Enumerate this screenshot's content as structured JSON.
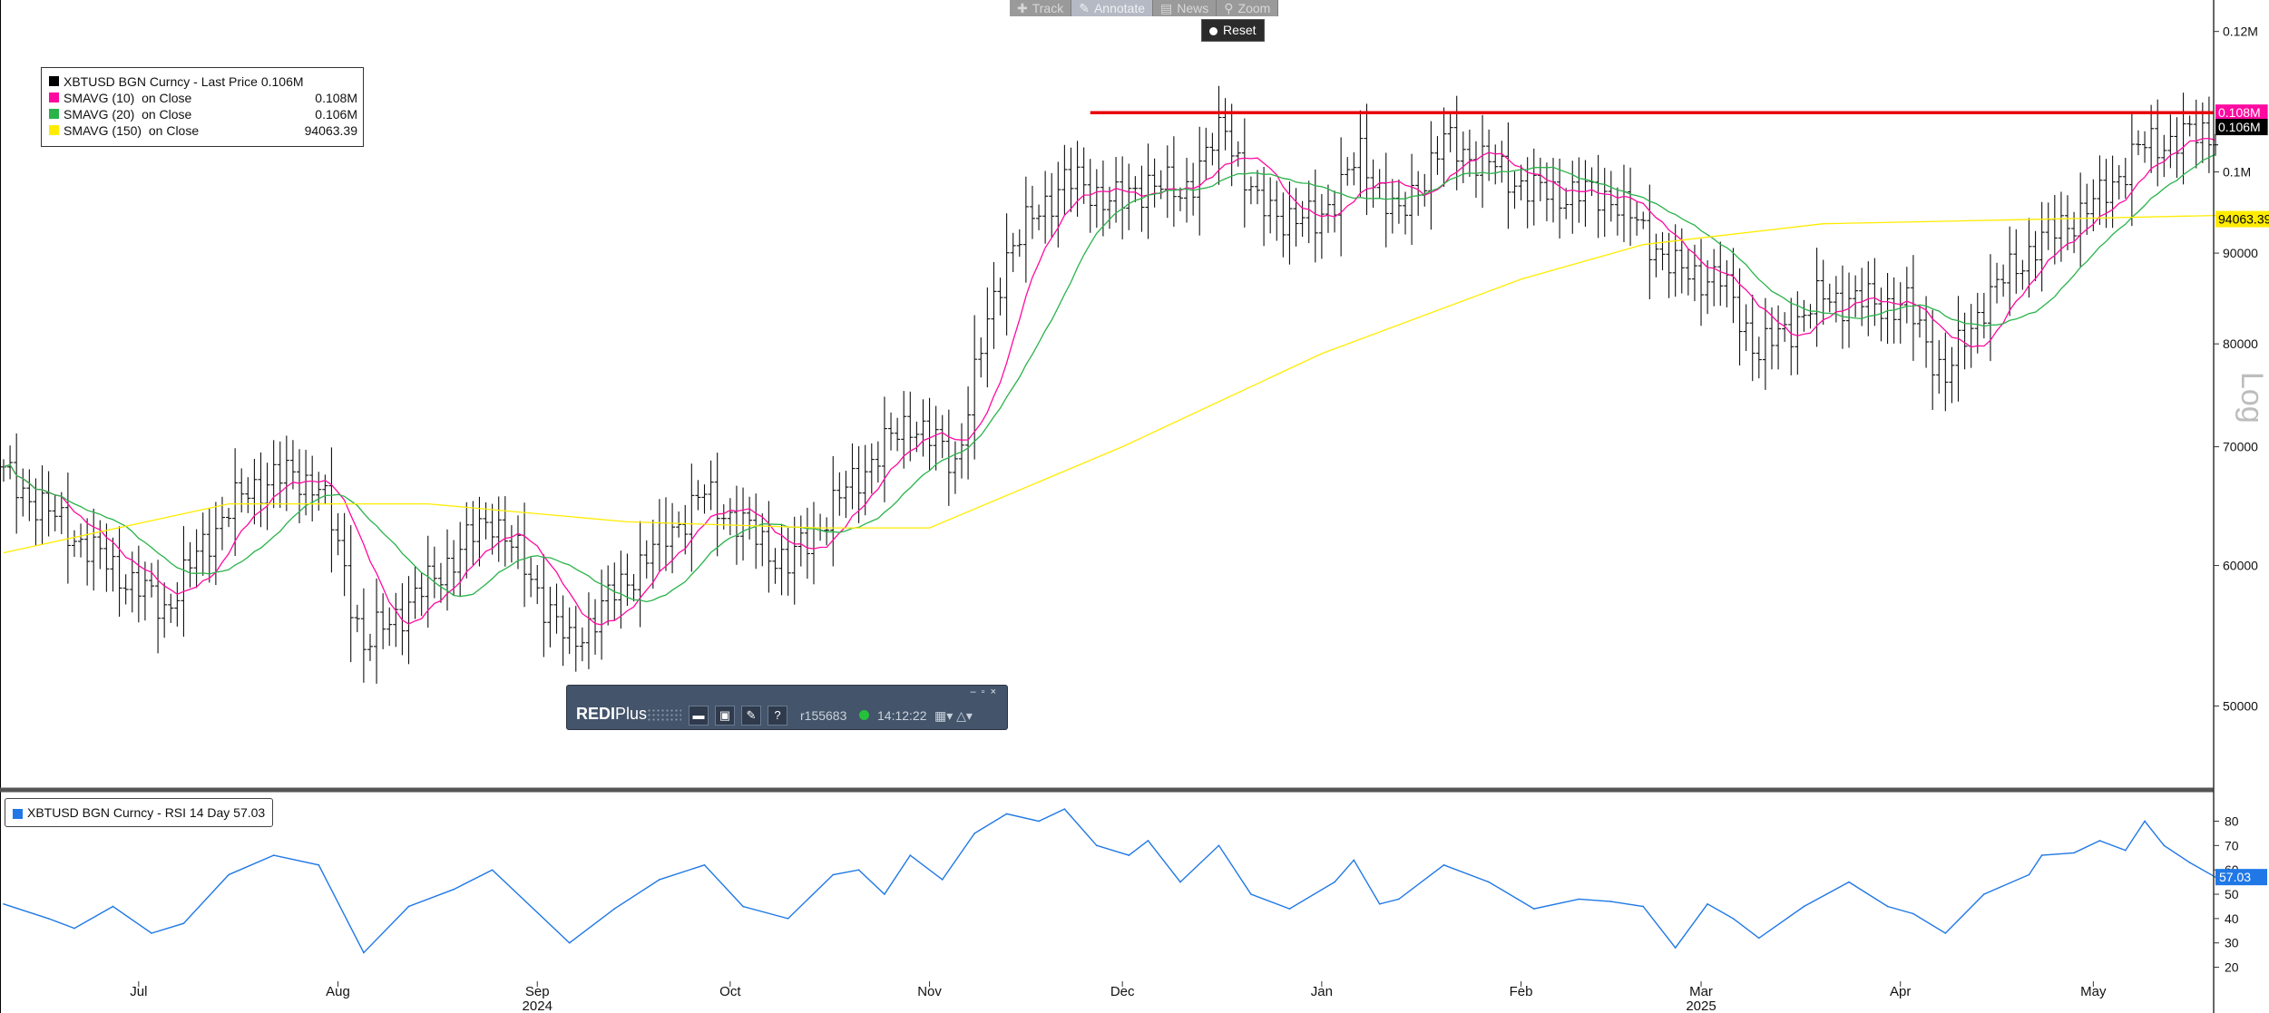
{
  "toolbar": {
    "buttons": [
      {
        "label": "Track",
        "icon": "crosshair-icon",
        "active": false
      },
      {
        "label": "Annotate",
        "icon": "pencil-icon",
        "active": true
      },
      {
        "label": "News",
        "icon": "news-icon",
        "active": false
      },
      {
        "label": "Zoom",
        "icon": "magnifier-icon",
        "active": false
      }
    ],
    "reset_label": "Reset"
  },
  "legend": {
    "rows": [
      {
        "name": "XBTUSD BGN Curncy - Last Price 0.106M",
        "value": "",
        "color": "#000000"
      },
      {
        "name": "SMAVG (10)  on Close",
        "value": "0.108M",
        "color": "#ff0aa0"
      },
      {
        "name": "SMAVG (20)  on Close",
        "value": "0.106M",
        "color": "#29b34a"
      },
      {
        "name": "SMAVG (150)  on Close",
        "value": "94063.39",
        "color": "#ffec00"
      }
    ]
  },
  "rsi_legend": {
    "label": "XBTUSD BGN Curncy - RSI 14 Day 57.03",
    "color": "#1f78e6"
  },
  "redi": {
    "brand": "REDI",
    "brand_suffix": "Plus",
    "user": "r155683",
    "time": "14:12:22",
    "status_color": "#25c13b"
  },
  "scale_label": "Log",
  "chart_data": [
    {
      "type": "ohlc",
      "title": "XBTUSD BGN Curncy - Last Price 0.106M",
      "y_scale": "log",
      "ylim": [
        45000,
        125000
      ],
      "y_ticks": [
        50000,
        60000,
        70000,
        80000,
        90000,
        100000,
        120000
      ],
      "y_tick_labels": [
        "50000",
        "60000",
        "70000",
        "80000",
        "90000",
        "0.1M",
        "0.12M"
      ],
      "x_range": [
        "2024-06-10",
        "2025-05-20"
      ],
      "x_ticks": [
        {
          "date": "2024-07-01",
          "label": "Jul"
        },
        {
          "date": "2024-08-01",
          "label": "Aug"
        },
        {
          "date": "2024-09-01",
          "label": "Sep"
        },
        {
          "date": "2024-10-01",
          "label": "Oct"
        },
        {
          "date": "2024-11-01",
          "label": "Nov"
        },
        {
          "date": "2024-12-01",
          "label": "Dec"
        },
        {
          "date": "2025-01-01",
          "label": "Jan"
        },
        {
          "date": "2025-02-01",
          "label": "Feb"
        },
        {
          "date": "2025-03-01",
          "label": "Mar"
        },
        {
          "date": "2025-04-01",
          "label": "Apr"
        },
        {
          "date": "2025-05-01",
          "label": "May"
        }
      ],
      "year_labels": [
        {
          "date": "2024-09-01",
          "label": "2024"
        },
        {
          "date": "2025-03-01",
          "label": "2025"
        }
      ],
      "close_anchors": [
        [
          "2024-06-10",
          67500
        ],
        [
          "2024-06-24",
          61000
        ],
        [
          "2024-07-05",
          56700
        ],
        [
          "2024-07-15",
          64700
        ],
        [
          "2024-07-22",
          67500
        ],
        [
          "2024-07-29",
          66800
        ],
        [
          "2024-08-05",
          54000
        ],
        [
          "2024-08-15",
          58500
        ],
        [
          "2024-08-25",
          64000
        ],
        [
          "2024-09-06",
          54000
        ],
        [
          "2024-09-15",
          59000
        ],
        [
          "2024-09-27",
          65800
        ],
        [
          "2024-10-10",
          60000
        ],
        [
          "2024-10-21",
          67500
        ],
        [
          "2024-10-29",
          72500
        ],
        [
          "2024-11-05",
          68500
        ],
        [
          "2024-11-13",
          90000
        ],
        [
          "2024-11-22",
          99000
        ],
        [
          "2024-12-01",
          96000
        ],
        [
          "2024-12-05",
          99000
        ],
        [
          "2024-12-10",
          97000
        ],
        [
          "2024-12-17",
          106000
        ],
        [
          "2024-12-22",
          95500
        ],
        [
          "2024-12-31",
          93500
        ],
        [
          "2025-01-07",
          102000
        ],
        [
          "2025-01-13",
          94000
        ],
        [
          "2025-01-20",
          104000
        ],
        [
          "2025-01-27",
          101000
        ],
        [
          "2025-02-03",
          97500
        ],
        [
          "2025-02-15",
          97000
        ],
        [
          "2025-02-25",
          88000
        ],
        [
          "2025-03-04",
          87000
        ],
        [
          "2025-03-10",
          79000
        ],
        [
          "2025-03-20",
          85000
        ],
        [
          "2025-04-02",
          84000
        ],
        [
          "2025-04-08",
          76500
        ],
        [
          "2025-04-14",
          84500
        ],
        [
          "2025-04-22",
          91000
        ],
        [
          "2025-05-02",
          96500
        ],
        [
          "2025-05-08",
          103000
        ],
        [
          "2025-05-12",
          104000
        ],
        [
          "2025-05-20",
          105500
        ]
      ],
      "series": [
        {
          "name": "SMAVG (10)  on Close",
          "color": "#ff0aa0",
          "last": 108000
        },
        {
          "name": "SMAVG (20)  on Close",
          "color": "#29b34a",
          "last": 106000
        },
        {
          "name": "SMAVG (150)  on Close",
          "color": "#ffec00",
          "last": 94063.39,
          "values": [
            [
              "2024-06-10",
              61000
            ],
            [
              "2024-07-15",
              65000
            ],
            [
              "2024-08-15",
              65000
            ],
            [
              "2024-09-15",
              63500
            ],
            [
              "2024-10-15",
              63000
            ],
            [
              "2024-11-01",
              63000
            ],
            [
              "2024-12-01",
              70000
            ],
            [
              "2025-01-01",
              79000
            ],
            [
              "2025-02-01",
              87000
            ],
            [
              "2025-02-20",
              91000
            ],
            [
              "2025-03-20",
              93500
            ],
            [
              "2025-04-20",
              94000
            ],
            [
              "2025-05-20",
              94500
            ]
          ]
        }
      ],
      "hline": {
        "value": 108000,
        "from": "2024-11-26",
        "color": "#e8000b"
      },
      "price_tags": [
        {
          "label": "0.108M",
          "value": 108000,
          "bg": "#ff0aa0",
          "fg": "#ffffff"
        },
        {
          "label": "0.106M",
          "value": 106000,
          "bg": "#000000",
          "fg": "#ffffff"
        },
        {
          "label": "94063.39",
          "value": 94063.39,
          "bg": "#ffec00",
          "fg": "#000000"
        }
      ]
    },
    {
      "type": "line",
      "title": "XBTUSD BGN Curncy - RSI 14 Day 57.03",
      "ylim": [
        15,
        88
      ],
      "y_ticks": [
        20,
        30,
        40,
        50,
        60,
        70,
        80
      ],
      "last": 57.03,
      "color": "#1f78e6",
      "values": [
        [
          "2024-06-10",
          46
        ],
        [
          "2024-06-17",
          40
        ],
        [
          "2024-06-21",
          36
        ],
        [
          "2024-06-27",
          45
        ],
        [
          "2024-07-03",
          34
        ],
        [
          "2024-07-08",
          38
        ],
        [
          "2024-07-15",
          58
        ],
        [
          "2024-07-22",
          66
        ],
        [
          "2024-07-29",
          62
        ],
        [
          "2024-08-05",
          26
        ],
        [
          "2024-08-12",
          45
        ],
        [
          "2024-08-19",
          52
        ],
        [
          "2024-08-25",
          60
        ],
        [
          "2024-09-06",
          30
        ],
        [
          "2024-09-13",
          44
        ],
        [
          "2024-09-20",
          56
        ],
        [
          "2024-09-27",
          62
        ],
        [
          "2024-10-03",
          45
        ],
        [
          "2024-10-10",
          40
        ],
        [
          "2024-10-17",
          58
        ],
        [
          "2024-10-21",
          60
        ],
        [
          "2024-10-25",
          50
        ],
        [
          "2024-10-29",
          66
        ],
        [
          "2024-11-03",
          56
        ],
        [
          "2024-11-08",
          75
        ],
        [
          "2024-11-13",
          83
        ],
        [
          "2024-11-18",
          80
        ],
        [
          "2024-11-22",
          85
        ],
        [
          "2024-11-27",
          70
        ],
        [
          "2024-12-02",
          66
        ],
        [
          "2024-12-05",
          72
        ],
        [
          "2024-12-10",
          55
        ],
        [
          "2024-12-16",
          70
        ],
        [
          "2024-12-21",
          50
        ],
        [
          "2024-12-27",
          44
        ],
        [
          "2025-01-03",
          55
        ],
        [
          "2025-01-06",
          64
        ],
        [
          "2025-01-10",
          46
        ],
        [
          "2025-01-13",
          48
        ],
        [
          "2025-01-20",
          62
        ],
        [
          "2025-01-27",
          55
        ],
        [
          "2025-02-03",
          44
        ],
        [
          "2025-02-10",
          48
        ],
        [
          "2025-02-15",
          47
        ],
        [
          "2025-02-20",
          45
        ],
        [
          "2025-02-25",
          28
        ],
        [
          "2025-03-02",
          46
        ],
        [
          "2025-03-06",
          40
        ],
        [
          "2025-03-10",
          32
        ],
        [
          "2025-03-17",
          45
        ],
        [
          "2025-03-24",
          55
        ],
        [
          "2025-03-30",
          45
        ],
        [
          "2025-04-03",
          42
        ],
        [
          "2025-04-08",
          34
        ],
        [
          "2025-04-14",
          50
        ],
        [
          "2025-04-21",
          58
        ],
        [
          "2025-04-23",
          66
        ],
        [
          "2025-04-28",
          67
        ],
        [
          "2025-05-02",
          72
        ],
        [
          "2025-05-06",
          68
        ],
        [
          "2025-05-09",
          80
        ],
        [
          "2025-05-12",
          70
        ],
        [
          "2025-05-16",
          63
        ],
        [
          "2025-05-20",
          57
        ]
      ]
    }
  ]
}
